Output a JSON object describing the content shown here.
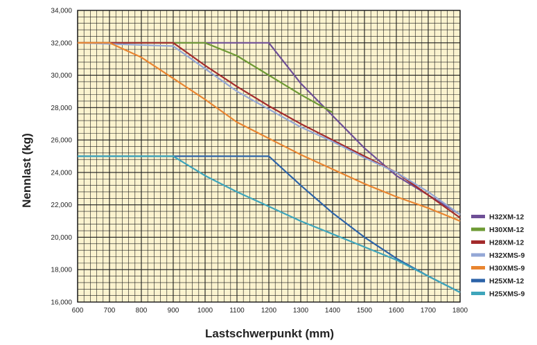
{
  "chart_data": {
    "type": "line",
    "title": "",
    "xlabel": "Lastschwerpunkt (mm)",
    "ylabel": "Nennlast (kg)",
    "xlim": [
      600,
      1800
    ],
    "ylim": [
      16000,
      34000
    ],
    "x_ticks": [
      600,
      700,
      800,
      900,
      1000,
      1100,
      1200,
      1300,
      1400,
      1500,
      1600,
      1700,
      1800
    ],
    "y_ticks": [
      16000,
      18000,
      20000,
      22000,
      24000,
      26000,
      28000,
      30000,
      32000,
      34000
    ],
    "x_tick_labels": [
      "600",
      "700",
      "800",
      "900",
      "1000",
      "1100",
      "1200",
      "1300",
      "1400",
      "1500",
      "1600",
      "1700",
      "1800"
    ],
    "y_tick_labels": [
      "16,000",
      "18,000",
      "20,000",
      "22,000",
      "24,000",
      "26,000",
      "28,000",
      "30,000",
      "32,000",
      "34,000"
    ],
    "grid": true,
    "plot_background": "#fbf3cf",
    "legend_position": "right-bottom",
    "series": [
      {
        "name": "H32XM-12",
        "color": "#6e4f96",
        "points": [
          [
            600,
            32000
          ],
          [
            1200,
            32000
          ],
          [
            1300,
            29500
          ],
          [
            1400,
            27500
          ],
          [
            1500,
            25500
          ],
          [
            1600,
            23800
          ],
          [
            1700,
            22600
          ],
          [
            1800,
            21400
          ]
        ]
      },
      {
        "name": "H30XM-12",
        "color": "#6e9a34",
        "points": [
          [
            600,
            32000
          ],
          [
            1000,
            32000
          ],
          [
            1100,
            31200
          ],
          [
            1200,
            30000
          ],
          [
            1300,
            28800
          ],
          [
            1400,
            27700
          ]
        ]
      },
      {
        "name": "H28XM-12",
        "color": "#a32b2c",
        "points": [
          [
            600,
            32000
          ],
          [
            900,
            32000
          ],
          [
            1000,
            30600
          ],
          [
            1100,
            29300
          ],
          [
            1200,
            28100
          ],
          [
            1300,
            27000
          ],
          [
            1400,
            26000
          ],
          [
            1500,
            25000
          ],
          [
            1600,
            24000
          ],
          [
            1700,
            22600
          ],
          [
            1800,
            21200
          ]
        ]
      },
      {
        "name": "H32XMS-9",
        "color": "#94a7d6",
        "points": [
          [
            600,
            32000
          ],
          [
            900,
            31800
          ],
          [
            1000,
            30400
          ],
          [
            1100,
            29000
          ],
          [
            1200,
            27900
          ],
          [
            1300,
            26800
          ],
          [
            1400,
            25900
          ],
          [
            1500,
            24900
          ],
          [
            1600,
            24000
          ],
          [
            1700,
            22800
          ],
          [
            1800,
            21400
          ]
        ]
      },
      {
        "name": "H30XMS-9",
        "color": "#e98530",
        "points": [
          [
            600,
            32000
          ],
          [
            700,
            32000
          ],
          [
            800,
            31100
          ],
          [
            900,
            29800
          ],
          [
            1000,
            28500
          ],
          [
            1100,
            27100
          ],
          [
            1200,
            26100
          ],
          [
            1300,
            25100
          ],
          [
            1400,
            24200
          ],
          [
            1500,
            23300
          ],
          [
            1600,
            22500
          ],
          [
            1700,
            21800
          ],
          [
            1800,
            21000
          ]
        ]
      },
      {
        "name": "H25XM-12",
        "color": "#2c63a8",
        "points": [
          [
            600,
            25000
          ],
          [
            1200,
            25000
          ],
          [
            1300,
            23200
          ],
          [
            1400,
            21500
          ],
          [
            1500,
            20000
          ],
          [
            1600,
            18700
          ],
          [
            1700,
            17600
          ],
          [
            1800,
            16600
          ]
        ]
      },
      {
        "name": "H25XMS-9",
        "color": "#3ea5bb",
        "points": [
          [
            600,
            25000
          ],
          [
            900,
            25000
          ],
          [
            1000,
            23800
          ],
          [
            1100,
            22800
          ],
          [
            1200,
            21900
          ],
          [
            1300,
            21000
          ],
          [
            1400,
            20200
          ],
          [
            1500,
            19400
          ],
          [
            1600,
            18600
          ],
          [
            1700,
            17600
          ],
          [
            1800,
            16600
          ]
        ]
      }
    ]
  }
}
